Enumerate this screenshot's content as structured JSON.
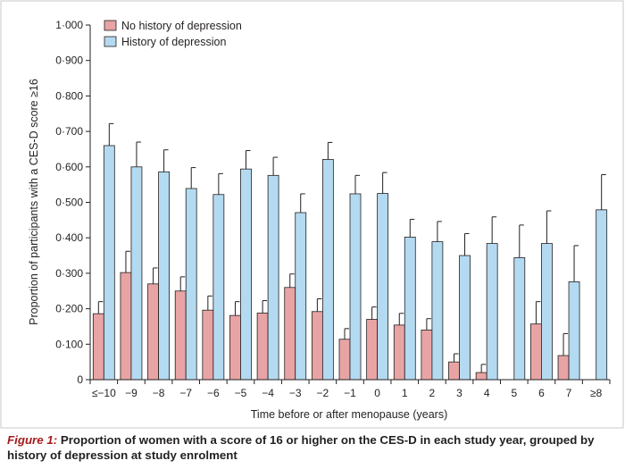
{
  "chart_data": {
    "type": "bar",
    "xlabel": "Time before or after menopause (years)",
    "ylabel": "Proportion of participants with a CES-D score ≥16",
    "ylim": [
      0,
      1.0
    ],
    "yticks": [
      "0",
      "0·100",
      "0·200",
      "0·300",
      "0·400",
      "0·500",
      "0·600",
      "0·700",
      "0·800",
      "0·900",
      "1·000"
    ],
    "categories": [
      "≤−10",
      "−9",
      "−8",
      "−7",
      "−6",
      "−5",
      "−4",
      "−3",
      "−2",
      "−1",
      "0",
      "1",
      "2",
      "3",
      "4",
      "5",
      "6",
      "7",
      "≥8"
    ],
    "series": [
      {
        "name": "No history of depression",
        "color": "#e8a4a4",
        "values": [
          0.186,
          0.302,
          0.27,
          0.25,
          0.196,
          0.181,
          0.188,
          0.26,
          0.192,
          0.114,
          0.17,
          0.154,
          0.14,
          0.05,
          0.02,
          null,
          0.157,
          0.068,
          null
        ],
        "error_upper": [
          0.22,
          0.362,
          0.315,
          0.29,
          0.236,
          0.22,
          0.223,
          0.298,
          0.228,
          0.144,
          0.205,
          0.187,
          0.172,
          0.073,
          0.043,
          null,
          0.22,
          0.13,
          null
        ]
      },
      {
        "name": "History of depression",
        "color": "#b3daf0",
        "values": [
          0.66,
          0.6,
          0.586,
          0.539,
          0.522,
          0.594,
          0.576,
          0.471,
          0.621,
          0.524,
          0.525,
          0.402,
          0.389,
          0.35,
          0.384,
          0.344,
          0.384,
          0.276,
          0.479
        ],
        "error_upper": [
          0.722,
          0.67,
          0.648,
          0.598,
          0.581,
          0.646,
          0.627,
          0.524,
          0.669,
          0.576,
          0.584,
          0.452,
          0.446,
          0.412,
          0.459,
          0.436,
          0.476,
          0.378,
          0.578
        ]
      }
    ],
    "legend_position": "top-left",
    "grid": false
  },
  "caption": {
    "label": "Figure 1:",
    "text": " Proportion of women with a score of 16 or higher on the CES-D in each study year, grouped by history of depression at study enrolment"
  }
}
